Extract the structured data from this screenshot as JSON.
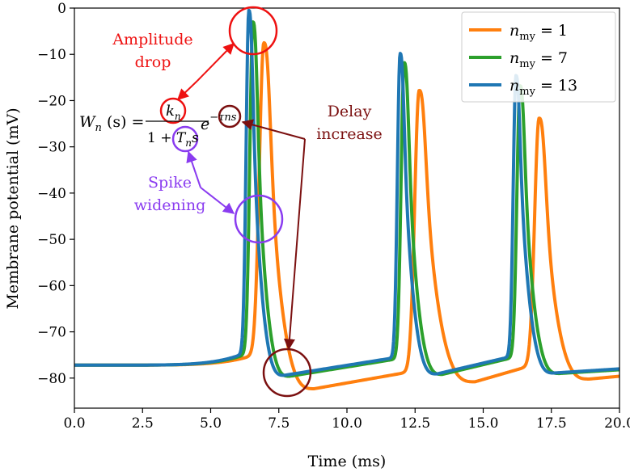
{
  "chart_data": {
    "type": "line",
    "title": "",
    "xlabel": "Time (ms)",
    "ylabel": "Membrane potential (mV)",
    "xlim": [
      0,
      20
    ],
    "ylim": [
      -86.5,
      0
    ],
    "xticks": [
      0,
      2.5,
      5,
      7.5,
      10,
      12.5,
      15,
      17.5,
      20
    ],
    "xtick_labels": [
      "0.0",
      "2.5",
      "5.0",
      "7.5",
      "10.0",
      "12.5",
      "15.0",
      "17.5",
      "20.0"
    ],
    "yticks": [
      0,
      -10,
      -20,
      -30,
      -40,
      -50,
      -60,
      -70,
      -80
    ],
    "ytick_labels": [
      "0",
      "−10",
      "−20",
      "−30",
      "−40",
      "−50",
      "−60",
      "−70",
      "−80"
    ],
    "grid": false,
    "legend": "top-right",
    "series": [
      {
        "name_prefix": "n",
        "name_sub": "my",
        "name_suffix": " = 1",
        "color": "#ff7f0e",
        "spikes": [
          {
            "t": 6.95,
            "peak": -7.5,
            "t_min": 8.8,
            "min": -82.3
          },
          {
            "t": 12.65,
            "peak": -17.8,
            "t_min": 14.7,
            "min": -80.8
          },
          {
            "t": 17.05,
            "peak": -23.8,
            "t_min": 18.9,
            "min": -80.2
          }
        ],
        "width": 0.23,
        "start": -77.2,
        "end": -79.6
      },
      {
        "name_prefix": "n",
        "name_sub": "my",
        "name_suffix": " = 7",
        "color": "#2ca02c",
        "spikes": [
          {
            "t": 6.55,
            "peak": -3.0,
            "t_min": 7.9,
            "min": -79.6
          },
          {
            "t": 12.1,
            "peak": -11.8,
            "t_min": 13.5,
            "min": -79.2
          },
          {
            "t": 16.35,
            "peak": -16.8,
            "t_min": 17.8,
            "min": -79.0
          }
        ],
        "width": 0.16,
        "start": -77.2,
        "end": -78.2
      },
      {
        "name_prefix": "n",
        "name_sub": "my",
        "name_suffix": " = 13",
        "color": "#1f77b4",
        "spikes": [
          {
            "t": 6.4,
            "peak": -0.5,
            "t_min": 7.7,
            "min": -79.4
          },
          {
            "t": 11.95,
            "peak": -9.8,
            "t_min": 13.3,
            "min": -79.1
          },
          {
            "t": 16.2,
            "peak": -14.6,
            "t_min": 17.6,
            "min": -78.9
          }
        ],
        "width": 0.14,
        "start": -77.2,
        "end": -78.0
      }
    ],
    "annotations": [
      {
        "text": "Amplitude",
        "color": "#ee1111"
      },
      {
        "text": "drop",
        "color": "#ee1111"
      },
      {
        "text": "Delay",
        "color": "#7b1010"
      },
      {
        "text": "increase",
        "color": "#7b1010"
      },
      {
        "text": "Spike",
        "color": "#8a3cf0"
      },
      {
        "text": "widening",
        "color": "#8a3cf0"
      }
    ],
    "formula": {
      "lhs": "W",
      "lhs_sub": "n",
      "arg": " (s) =",
      "num": "k",
      "num_sub": "n",
      "den_pre": "1 + ",
      "den_T": "T",
      "den_sub": "n",
      "den_s": "s",
      "exp_base": "e",
      "exp": "−τns"
    }
  }
}
